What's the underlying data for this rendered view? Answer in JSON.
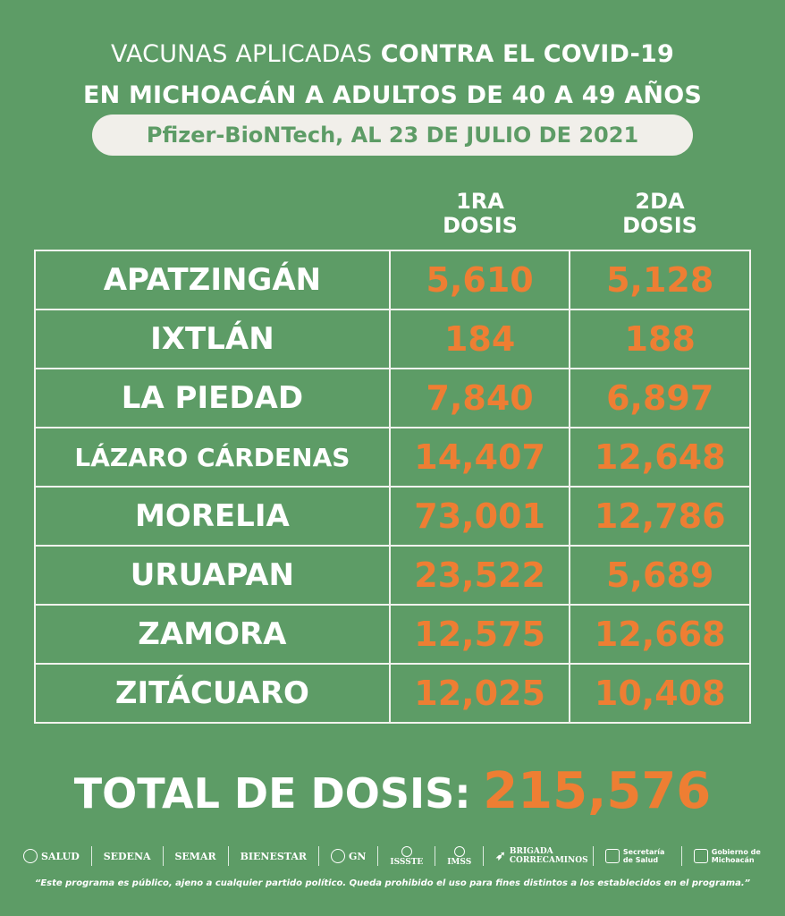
{
  "title": {
    "line1_light": "VACUNAS APLICADAS",
    "line1_bold": "CONTRA EL COVID-19",
    "line2": "EN MICHOACÁN A ADULTOS DE 40 A 49 AÑOS"
  },
  "subtitle": "Pfizer-BioNTech, AL 23 DE JULIO DE 2021",
  "columns": {
    "dose1": [
      "1RA",
      "DOSIS"
    ],
    "dose2": [
      "2DA",
      "DOSIS"
    ]
  },
  "rows": [
    {
      "municipio": "APATZINGÁN",
      "dosis1": "5,610",
      "dosis2": "5,128"
    },
    {
      "municipio": "IXTLÁN",
      "dosis1": "184",
      "dosis2": "188"
    },
    {
      "municipio": "LA PIEDAD",
      "dosis1": "7,840",
      "dosis2": "6,897"
    },
    {
      "municipio": "LÁZARO CÁRDENAS",
      "dosis1": "14,407",
      "dosis2": "12,648"
    },
    {
      "municipio": "MORELIA",
      "dosis1": "73,001",
      "dosis2": "12,786"
    },
    {
      "municipio": "URUAPAN",
      "dosis1": "23,522",
      "dosis2": "5,689"
    },
    {
      "municipio": "ZAMORA",
      "dosis1": "12,575",
      "dosis2": "12,668"
    },
    {
      "municipio": "ZITÁCUARO",
      "dosis1": "12,025",
      "dosis2": "10,408"
    }
  ],
  "total": {
    "label": "TOTAL DE DOSIS:",
    "value": "215,576"
  },
  "logos": [
    "SALUD",
    "SEDENA",
    "SEMAR",
    "BIENESTAR",
    "GN",
    "ISSSTE",
    "IMSS",
    "BRIGADA CORRECAMINOS",
    "Secretaría de Salud",
    "Gobierno de Michoacán"
  ],
  "footer": "“Este programa es público, ajeno a cualquier partido político. Queda prohibido el uso para fines distintos a los establecidos en el programa.”",
  "colors": {
    "background": "#5d9c66",
    "accent": "#ee7e33",
    "text": "#ffffff",
    "pill": "#f1efea"
  }
}
